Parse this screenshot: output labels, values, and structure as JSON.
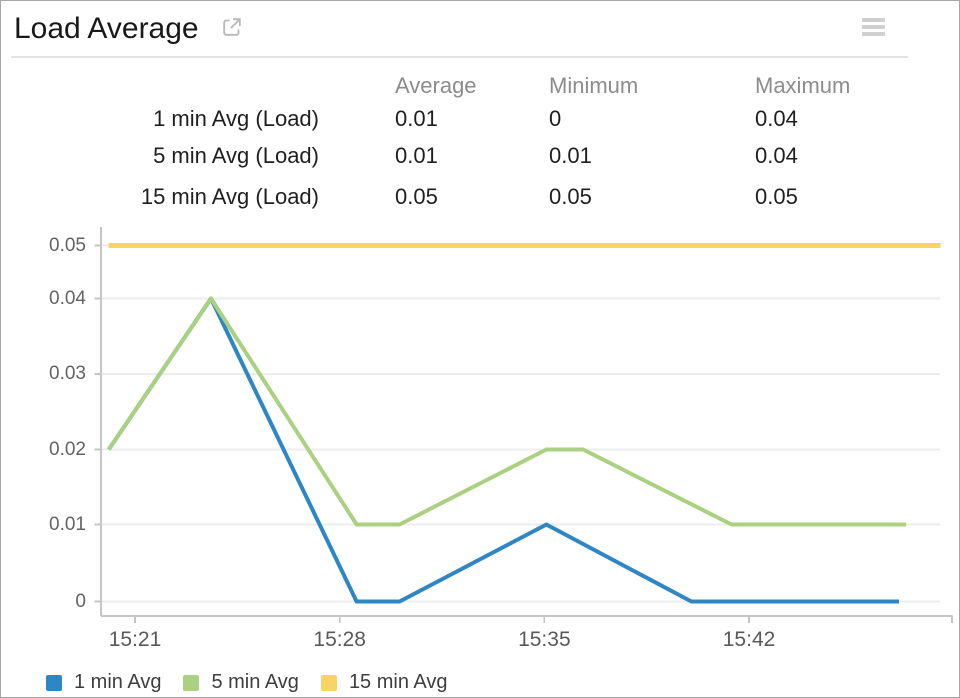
{
  "header": {
    "title": "Load Average",
    "external_link_icon": "external-link-icon",
    "menu_icon": "hamburger-menu-icon"
  },
  "summary_table": {
    "columns": [
      "Average",
      "Minimum",
      "Maximum"
    ],
    "rows": [
      {
        "label": "1 min Avg (Load)",
        "values": [
          "0.01",
          "0",
          "0.04"
        ]
      },
      {
        "label": "5 min Avg (Load)",
        "values": [
          "0.01",
          "0.01",
          "0.04"
        ]
      },
      {
        "label": "15 min Avg (Load)",
        "values": [
          "0.05",
          "0.05",
          "0.05"
        ]
      }
    ]
  },
  "chart_data": {
    "type": "line",
    "title": "Load Average",
    "x_unit": "minutes after 15:00",
    "x_axis": {
      "tick_labels": [
        "15:21",
        "15:28",
        "15:35",
        "15:42"
      ],
      "tick_minutes": [
        21,
        28,
        35,
        42
      ]
    },
    "y_axis": {
      "tick_labels": [
        "0",
        "0.01",
        "0.02",
        "0.03",
        "0.04",
        "0.05"
      ],
      "tick_values": [
        0,
        0.01,
        0.02,
        0.03,
        0.04,
        0.05
      ],
      "range": [
        0,
        0.05
      ]
    },
    "grid": true,
    "legend_position": "bottom",
    "series": [
      {
        "name": "1 min Avg",
        "color": "#2e87c4",
        "points": [
          [
            20.1,
            0.02
          ],
          [
            23.6,
            0.04
          ],
          [
            28.58,
            0
          ],
          [
            30.05,
            0
          ],
          [
            35.07,
            0.01
          ],
          [
            40.03,
            0
          ],
          [
            47.13,
            0
          ]
        ]
      },
      {
        "name": "5 min Avg",
        "color": "#aad181",
        "points": [
          [
            20.1,
            0.02
          ],
          [
            23.6,
            0.04
          ],
          [
            28.58,
            0.01
          ],
          [
            30.05,
            0.01
          ],
          [
            35.07,
            0.02
          ],
          [
            36.33,
            0.02
          ],
          [
            41.4,
            0.01
          ],
          [
            47.37,
            0.01
          ]
        ]
      },
      {
        "name": "15 min Avg",
        "color": "#f9d464",
        "points": [
          [
            20.1,
            0.05
          ],
          [
            48.55,
            0.05
          ]
        ]
      }
    ]
  }
}
